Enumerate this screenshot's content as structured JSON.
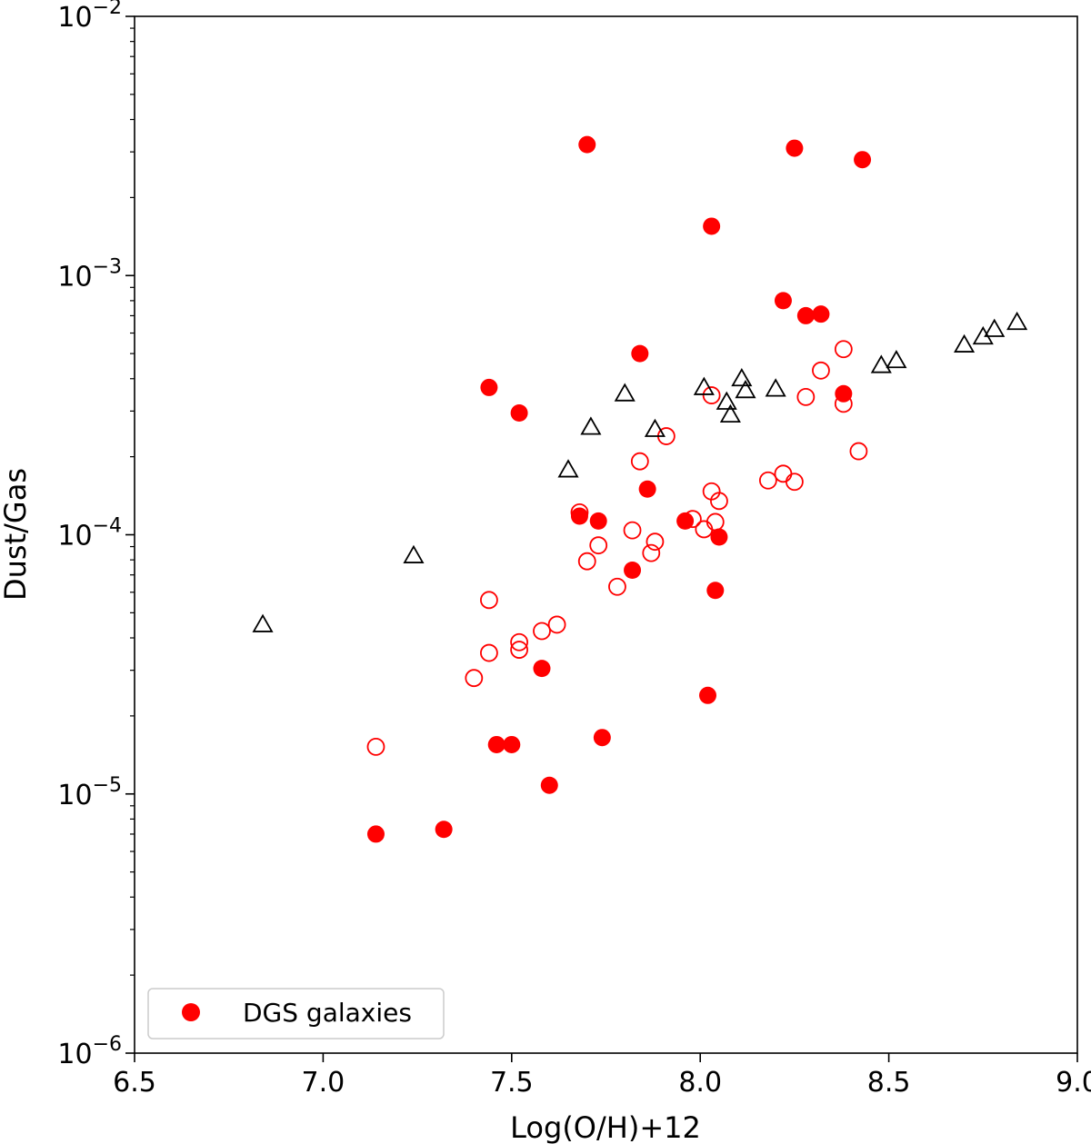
{
  "chart_data": {
    "type": "scatter",
    "title": "",
    "xlabel": "Log(O/H)+12",
    "ylabel": "Dust/Gas",
    "xlim": [
      6.5,
      9.0
    ],
    "ylim": [
      1e-06,
      0.01
    ],
    "yscale": "log",
    "grid": false,
    "legend_position": "lower-left",
    "x_ticks": [
      {
        "value": 6.5,
        "label": "6.5"
      },
      {
        "value": 7.0,
        "label": "7.0"
      },
      {
        "value": 7.5,
        "label": "7.5"
      },
      {
        "value": 8.0,
        "label": "8.0"
      },
      {
        "value": 8.5,
        "label": "8.5"
      },
      {
        "value": 9.0,
        "label": "9.0"
      }
    ],
    "y_ticks": [
      {
        "value": 1e-06,
        "base": "10",
        "exp": "−6"
      },
      {
        "value": 1e-05,
        "base": "10",
        "exp": "−5"
      },
      {
        "value": 0.0001,
        "base": "10",
        "exp": "−4"
      },
      {
        "value": 0.001,
        "base": "10",
        "exp": "−3"
      },
      {
        "value": 0.01,
        "base": "10",
        "exp": "−2"
      }
    ],
    "series": [
      {
        "name": "DGS galaxies",
        "marker": "filled-circle",
        "color": "#ff0000",
        "points": [
          [
            7.7,
            0.0032
          ],
          [
            8.25,
            0.0031
          ],
          [
            8.43,
            0.0028
          ],
          [
            8.03,
            0.00155
          ],
          [
            8.22,
            0.0008
          ],
          [
            8.28,
            0.0007
          ],
          [
            8.32,
            0.00071
          ],
          [
            7.84,
            0.0005
          ],
          [
            7.44,
            0.00037
          ],
          [
            7.52,
            0.000295
          ],
          [
            8.38,
            0.00035
          ],
          [
            7.86,
            0.00015
          ],
          [
            7.68,
            0.000118
          ],
          [
            7.73,
            0.000113
          ],
          [
            7.96,
            0.000113
          ],
          [
            8.05,
            9.8e-05
          ],
          [
            7.82,
            7.3e-05
          ],
          [
            8.04,
            6.1e-05
          ],
          [
            7.58,
            3.05e-05
          ],
          [
            8.02,
            2.4e-05
          ],
          [
            7.74,
            1.65e-05
          ],
          [
            7.46,
            1.55e-05
          ],
          [
            7.5,
            1.55e-05
          ],
          [
            7.6,
            1.08e-05
          ],
          [
            7.14,
            7e-06
          ],
          [
            7.32,
            7.3e-06
          ]
        ]
      },
      {
        "name": "",
        "marker": "open-circle",
        "color": "#ff0000",
        "points": [
          [
            8.38,
            0.00052
          ],
          [
            8.32,
            0.00043
          ],
          [
            8.03,
            0.000345
          ],
          [
            8.28,
            0.00034
          ],
          [
            8.38,
            0.00032
          ],
          [
            7.91,
            0.00024
          ],
          [
            8.42,
            0.00021
          ],
          [
            7.84,
            0.000192
          ],
          [
            8.22,
            0.000172
          ],
          [
            8.18,
            0.000162
          ],
          [
            8.25,
            0.00016
          ],
          [
            8.03,
            0.000147
          ],
          [
            8.05,
            0.000135
          ],
          [
            7.68,
            0.000122
          ],
          [
            7.98,
            0.000115
          ],
          [
            8.04,
            0.000112
          ],
          [
            8.01,
            0.000105
          ],
          [
            7.82,
            0.000104
          ],
          [
            7.88,
            9.4e-05
          ],
          [
            7.73,
            9.1e-05
          ],
          [
            7.87,
            8.5e-05
          ],
          [
            7.7,
            7.9e-05
          ],
          [
            7.78,
            6.3e-05
          ],
          [
            7.44,
            5.6e-05
          ],
          [
            7.62,
            4.5e-05
          ],
          [
            7.58,
            4.25e-05
          ],
          [
            7.52,
            3.85e-05
          ],
          [
            7.52,
            3.6e-05
          ],
          [
            7.44,
            3.5e-05
          ],
          [
            7.4,
            2.8e-05
          ],
          [
            7.14,
            1.52e-05
          ]
        ]
      },
      {
        "name": "",
        "marker": "open-triangle",
        "color": "#000000",
        "points": [
          [
            8.84,
            0.00066
          ],
          [
            8.78,
            0.00062
          ],
          [
            8.75,
            0.00058
          ],
          [
            8.7,
            0.00054
          ],
          [
            8.52,
            0.00047
          ],
          [
            8.48,
            0.00045
          ],
          [
            8.11,
            0.0004
          ],
          [
            8.01,
            0.00037
          ],
          [
            8.12,
            0.00036
          ],
          [
            8.2,
            0.000365
          ],
          [
            7.8,
            0.00035
          ],
          [
            8.07,
            0.000325
          ],
          [
            8.08,
            0.00029
          ],
          [
            7.71,
            0.00026
          ],
          [
            7.88,
            0.000255
          ],
          [
            7.65,
            0.000178
          ],
          [
            7.24,
            8.3e-05
          ],
          [
            6.84,
            4.5e-05
          ]
        ]
      }
    ]
  }
}
